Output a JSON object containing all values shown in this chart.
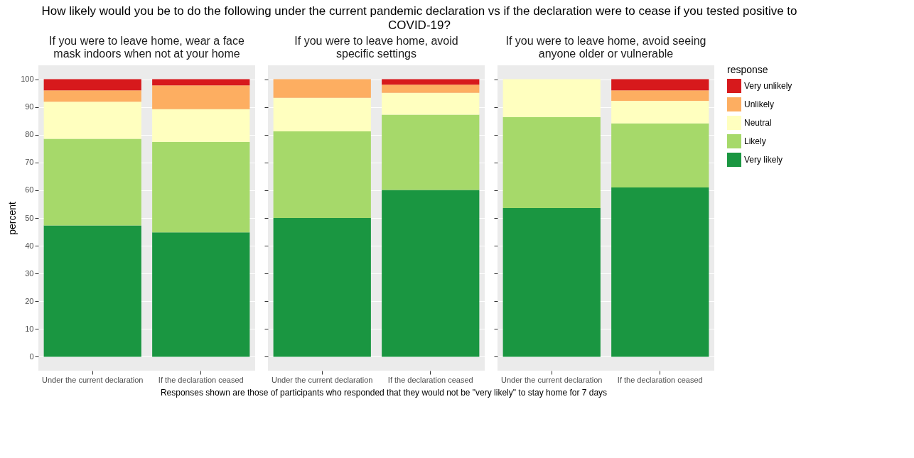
{
  "chart_data": [
    {
      "type": "bar",
      "stacked": true,
      "title": "If you were to leave home, wear a face mask indoors when not at your home",
      "ylabel": "percent",
      "annotations": [
        "How likely would you be to do the following under the current pandemic declaration vs if the declaration were to cease if you tested positive to COVID-19?",
        "Responses shown are those of participants who responded that they would not be \"very likely\" to stay home for 7 days"
      ],
      "categories": [
        "Under the current declaration",
        "If the declaration ceased"
      ],
      "ylim": [
        -5,
        105
      ],
      "yticks": [
        0,
        10,
        20,
        30,
        40,
        50,
        60,
        70,
        80,
        90,
        100
      ],
      "grid": "y",
      "series": [
        {
          "color": "#1a9641",
          "values": [
            47.3,
            44.8
          ]
        },
        {
          "color": "#a6d96a",
          "values": [
            31.2,
            32.6
          ]
        },
        {
          "color": "#ffffbf",
          "values": [
            13.4,
            11.8
          ]
        },
        {
          "color": "#fdae61",
          "values": [
            4.1,
            8.6
          ]
        },
        {
          "color": "#d7191c",
          "values": [
            4.0,
            2.2
          ]
        }
      ]
    },
    {
      "type": "bar",
      "stacked": true,
      "title": "If you were to leave home, avoid specific settings",
      "categories": [
        "Under the current declaration",
        "If the declaration ceased"
      ],
      "ylim": [
        -5,
        105
      ],
      "yticks": [
        0,
        10,
        20,
        30,
        40,
        50,
        60,
        70,
        80,
        90,
        100
      ],
      "grid": "y",
      "tick_labels": "x",
      "series": [
        {
          "color": "#1a9641",
          "values": [
            50.0,
            60.1
          ]
        },
        {
          "color": "#a6d96a",
          "values": [
            31.2,
            27.1
          ]
        },
        {
          "color": "#ffffbf",
          "values": [
            12.1,
            7.9
          ]
        },
        {
          "color": "#fdae61",
          "values": [
            6.7,
            2.9
          ]
        },
        {
          "color": "#d7191c",
          "values": [
            0,
            2.0
          ]
        }
      ]
    },
    {
      "type": "bar",
      "stacked": true,
      "title": "If you were to leave home, avoid seeing anyone older or vulnerable",
      "legend_title": "response",
      "legend": "right",
      "categories": [
        "Under the current declaration",
        "If the declaration ceased"
      ],
      "ylim": [
        -5,
        105
      ],
      "yticks": [
        0,
        10,
        20,
        30,
        40,
        50,
        60,
        70,
        80,
        90,
        100
      ],
      "grid": "y",
      "tick_labels": "x",
      "series": [
        {
          "name": "Very likely",
          "color": "#1a9641",
          "values": [
            53.6,
            61.0
          ]
        },
        {
          "name": "Likely",
          "color": "#a6d96a",
          "values": [
            32.7,
            23.1
          ]
        },
        {
          "name": "Neutral",
          "color": "#ffffbf",
          "values": [
            13.7,
            8.1
          ]
        },
        {
          "name": "Unlikely",
          "color": "#fdae61",
          "values": [
            0,
            3.8
          ]
        },
        {
          "name": "Very unlikely",
          "color": "#d7191c",
          "values": [
            0,
            4.0
          ]
        }
      ]
    }
  ]
}
